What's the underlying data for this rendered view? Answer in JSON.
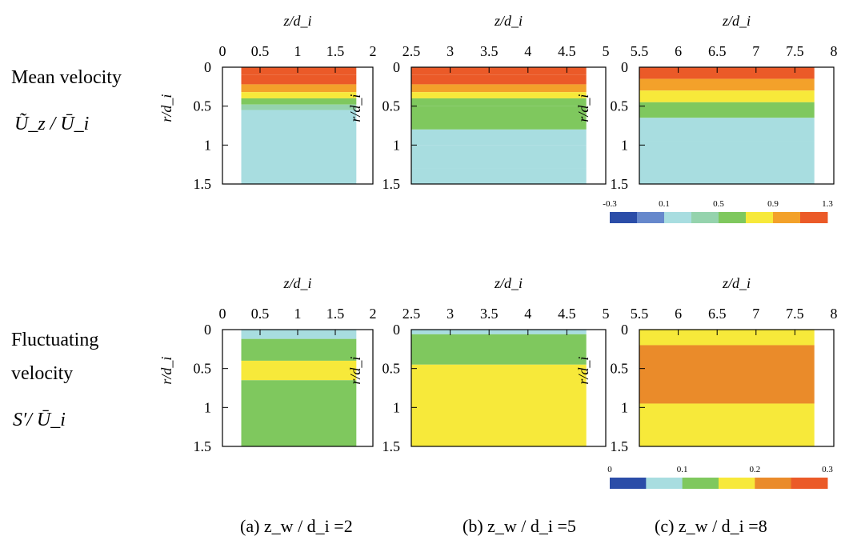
{
  "row_labels": {
    "mean": {
      "title": "Mean velocity",
      "quantity": "Ũ_z / Ū_i"
    },
    "fluct": {
      "title_line1": "Fluctuating",
      "title_line2": "velocity",
      "quantity": "S′/ Ū_i"
    }
  },
  "captions": [
    "(a)  z_w / d_i =2",
    "(b)  z_w / d_i =5",
    "(c)  z_w / d_i =8"
  ],
  "colorbars": {
    "mean": {
      "ticks": [
        "-0.3",
        "0.1",
        "0.5",
        "0.9",
        "1.3"
      ],
      "colors": [
        "#2b4da8",
        "#6688cc",
        "#a8dde0",
        "#95d3ad",
        "#7fc85e",
        "#f7e93a",
        "#f3a12a",
        "#eb5a28"
      ]
    },
    "fluct": {
      "ticks": [
        "0",
        "0.1",
        "0.2",
        "0.3"
      ],
      "colors": [
        "#2b4da8",
        "#a8dde0",
        "#7fc85e",
        "#f7e93a",
        "#ea8b2a",
        "#eb5a28"
      ]
    }
  },
  "chart_data": [
    {
      "type": "heatmap",
      "panel": "(a) top",
      "quantity": "Ũ_z/Ū_i",
      "xlabel": "z/d_i",
      "ylabel": "r/d_i",
      "xlim": [
        0,
        2
      ],
      "ylim": [
        0,
        1.5
      ],
      "xticks": [
        "0",
        "0.5",
        "1",
        "1.5",
        "2"
      ],
      "yticks": [
        "0",
        "0.5",
        "1",
        "1.5"
      ],
      "data_x_range": [
        0.25,
        1.78
      ],
      "bands_r": [
        [
          0,
          0.1,
          1.3
        ],
        [
          0.1,
          0.22,
          1.2
        ],
        [
          0.22,
          0.32,
          1.0
        ],
        [
          0.32,
          0.4,
          0.8
        ],
        [
          0.4,
          0.48,
          0.6
        ],
        [
          0.48,
          0.55,
          0.4
        ],
        [
          0.55,
          1.5,
          0.1
        ]
      ]
    },
    {
      "type": "heatmap",
      "panel": "(b) top",
      "quantity": "Ũ_z/Ū_i",
      "xlabel": "z/d_i",
      "ylabel": "r/d_i",
      "xlim": [
        2.5,
        5
      ],
      "ylim": [
        0,
        1.5
      ],
      "xticks": [
        "2.5",
        "3",
        "3.5",
        "4",
        "4.5",
        "5"
      ],
      "yticks": [
        "0",
        "0.5",
        "1",
        "1.5"
      ],
      "data_x_range": [
        2.5,
        4.75
      ],
      "bands_r": [
        [
          0,
          0.1,
          1.3
        ],
        [
          0.1,
          0.22,
          1.2
        ],
        [
          0.22,
          0.32,
          1.0
        ],
        [
          0.32,
          0.4,
          0.8
        ],
        [
          0.4,
          0.5,
          0.6
        ],
        [
          0.5,
          0.8,
          0.5
        ],
        [
          0.8,
          1.0,
          0.3
        ],
        [
          1.0,
          1.3,
          0.1
        ],
        [
          1.3,
          1.5,
          0.3
        ]
      ]
    },
    {
      "type": "heatmap",
      "panel": "(c) top",
      "quantity": "Ũ_z/Ū_i",
      "xlabel": "z/d_i",
      "ylabel": "r/d_i",
      "xlim": [
        5.5,
        8
      ],
      "ylim": [
        0,
        1.5
      ],
      "xticks": [
        "5.5",
        "6",
        "6.5",
        "7",
        "7.5",
        "8"
      ],
      "yticks": [
        "0",
        "0.5",
        "1",
        "1.5"
      ],
      "data_x_range": [
        5.5,
        7.75
      ],
      "bands_r": [
        [
          0,
          0.15,
          1.2
        ],
        [
          0.15,
          0.3,
          1.0
        ],
        [
          0.3,
          0.45,
          0.7
        ],
        [
          0.45,
          0.65,
          0.5
        ],
        [
          0.65,
          0.95,
          0.3
        ],
        [
          0.95,
          1.5,
          0.1
        ]
      ]
    },
    {
      "type": "heatmap",
      "panel": "(a) bottom",
      "quantity": "S′/Ū_i",
      "xlabel": "z/d_i",
      "ylabel": "r/d_i",
      "xlim": [
        0,
        2
      ],
      "ylim": [
        0,
        1.5
      ],
      "xticks": [
        "0",
        "0.5",
        "1",
        "1.5",
        "2"
      ],
      "yticks": [
        "0",
        "0.5",
        "1",
        "1.5"
      ],
      "data_x_range": [
        0.25,
        1.78
      ],
      "bands_r": [
        [
          0,
          0.12,
          0.07
        ],
        [
          0.12,
          0.4,
          0.12
        ],
        [
          0.4,
          0.65,
          0.17
        ],
        [
          0.65,
          1.5,
          0.12
        ]
      ]
    },
    {
      "type": "heatmap",
      "panel": "(b) bottom",
      "quantity": "S′/Ū_i",
      "xlabel": "z/d_i",
      "ylabel": "r/d_i",
      "xlim": [
        2.5,
        5
      ],
      "ylim": [
        0,
        1.5
      ],
      "xticks": [
        "2.5",
        "3",
        "3.5",
        "4",
        "4.5",
        "5"
      ],
      "yticks": [
        "0",
        "0.5",
        "1",
        "1.5"
      ],
      "data_x_range": [
        2.5,
        4.75
      ],
      "bands_r": [
        [
          0,
          0.06,
          0.07
        ],
        [
          0.06,
          0.45,
          0.12
        ],
        [
          0.45,
          1.5,
          0.17
        ]
      ]
    },
    {
      "type": "heatmap",
      "panel": "(c) bottom",
      "quantity": "S′/Ū_i",
      "xlabel": "z/d_i",
      "ylabel": "r/d_i",
      "xlim": [
        5.5,
        8
      ],
      "ylim": [
        0,
        1.5
      ],
      "xticks": [
        "5.5",
        "6",
        "6.5",
        "7",
        "7.5",
        "8"
      ],
      "yticks": [
        "0",
        "0.5",
        "1",
        "1.5"
      ],
      "data_x_range": [
        5.5,
        7.75
      ],
      "bands_r": [
        [
          0,
          0.2,
          0.17
        ],
        [
          0.2,
          0.95,
          0.22
        ],
        [
          0.95,
          1.5,
          0.17
        ]
      ]
    }
  ]
}
